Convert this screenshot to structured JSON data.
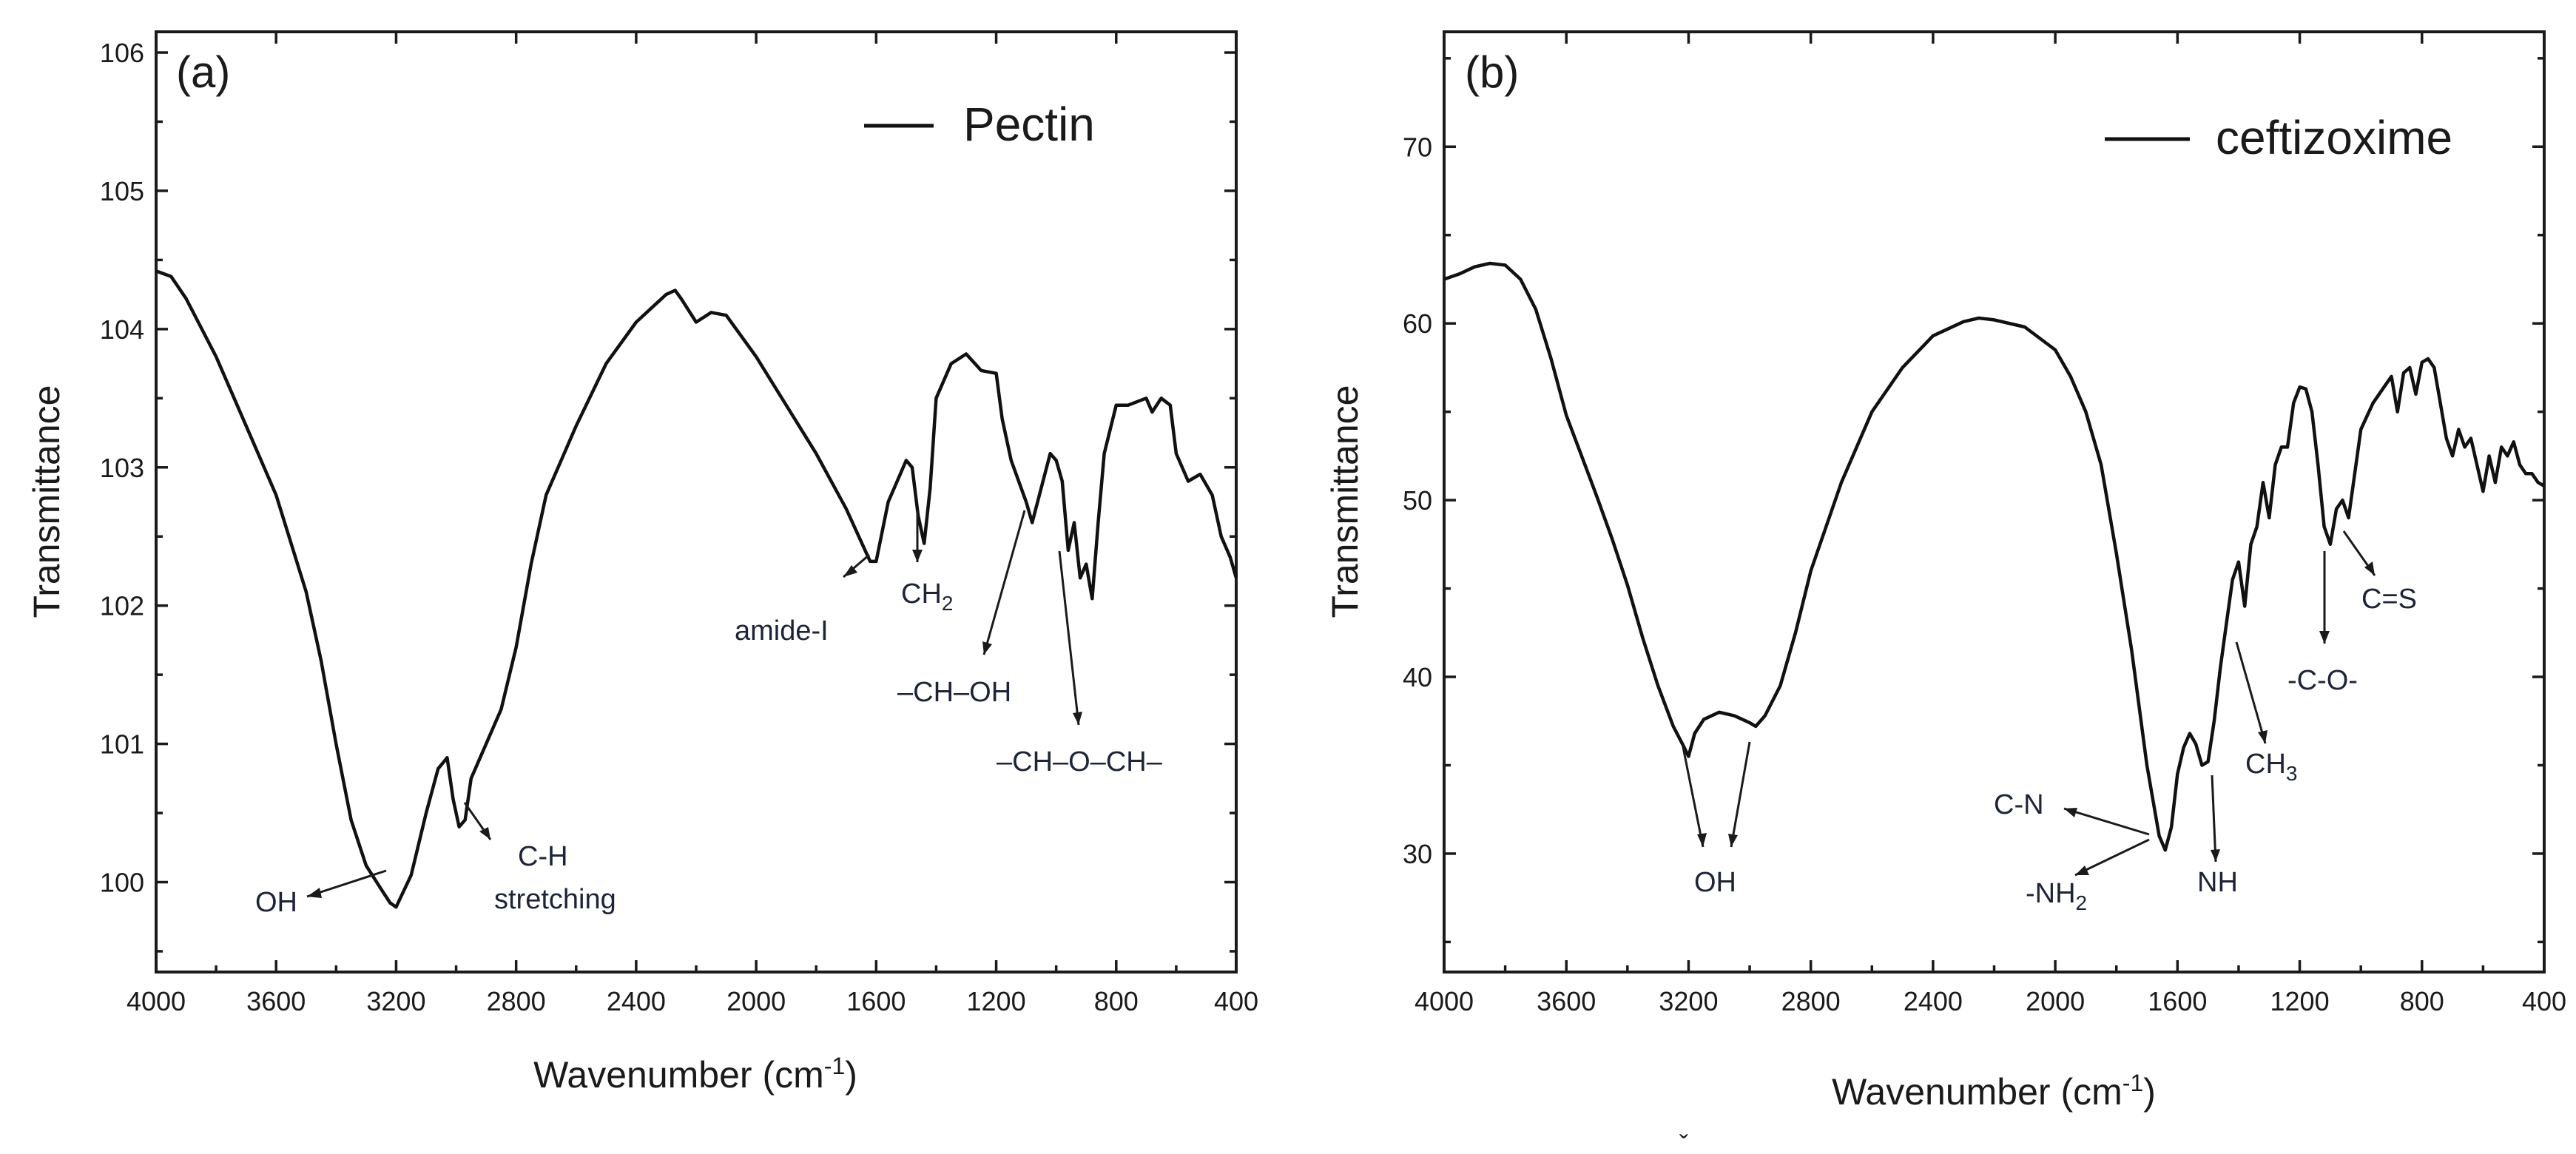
{
  "chart_data": [
    {
      "type": "line",
      "panel_label": "(a)",
      "xlabel": "Wavenumber (cm",
      "xlabel_sup": "-1",
      "xlabel_close": ")",
      "ylabel": "Transmittance",
      "xlim": [
        4000,
        400
      ],
      "ylim": [
        99.35,
        106.15
      ],
      "xticks": [
        4000,
        3600,
        3200,
        2800,
        2400,
        2000,
        1600,
        1200,
        800,
        400
      ],
      "xtick_labels": [
        "4000",
        "3600",
        "3200",
        "2800",
        "2400",
        "2000",
        "1600",
        "1200",
        "800",
        "400"
      ],
      "yticks": [
        100,
        101,
        102,
        103,
        104,
        105,
        106
      ],
      "ytick_labels": [
        "100",
        "101",
        "102",
        "103",
        "104",
        "105",
        "106"
      ],
      "legend": {
        "label": "Pectin",
        "position": "top-right"
      },
      "series": [
        {
          "name": "Pectin",
          "x": [
            4000,
            3950,
            3900,
            3800,
            3700,
            3600,
            3500,
            3450,
            3400,
            3350,
            3300,
            3250,
            3220,
            3200,
            3150,
            3100,
            3060,
            3030,
            3010,
            2990,
            2970,
            2950,
            2900,
            2850,
            2800,
            2750,
            2700,
            2600,
            2500,
            2400,
            2300,
            2270,
            2250,
            2200,
            2150,
            2100,
            2000,
            1900,
            1800,
            1700,
            1620,
            1600,
            1560,
            1520,
            1500,
            1480,
            1460,
            1440,
            1420,
            1400,
            1350,
            1300,
            1250,
            1200,
            1180,
            1150,
            1100,
            1080,
            1050,
            1020,
            1000,
            980,
            960,
            940,
            920,
            900,
            880,
            860,
            840,
            800,
            760,
            700,
            680,
            650,
            620,
            600,
            560,
            520,
            480,
            450,
            420,
            400
          ],
          "y": [
            104.42,
            104.38,
            104.22,
            103.8,
            103.3,
            102.8,
            102.1,
            101.6,
            101.0,
            100.45,
            100.12,
            99.95,
            99.85,
            99.82,
            100.05,
            100.5,
            100.82,
            100.9,
            100.6,
            100.4,
            100.45,
            100.75,
            101.0,
            101.25,
            101.7,
            102.3,
            102.8,
            103.3,
            103.75,
            104.05,
            104.25,
            104.28,
            104.22,
            104.05,
            104.12,
            104.1,
            103.8,
            103.45,
            103.1,
            102.7,
            102.32,
            102.32,
            102.75,
            102.95,
            103.05,
            103.0,
            102.65,
            102.45,
            102.85,
            103.5,
            103.75,
            103.82,
            103.7,
            103.68,
            103.35,
            103.05,
            102.75,
            102.6,
            102.85,
            103.1,
            103.05,
            102.9,
            102.4,
            102.6,
            102.2,
            102.3,
            102.05,
            102.6,
            103.1,
            103.45,
            103.45,
            103.5,
            103.4,
            103.5,
            103.45,
            103.1,
            102.9,
            102.95,
            102.8,
            102.5,
            102.35,
            102.2
          ]
        }
      ],
      "annotations": [
        {
          "text": "OH"
        },
        {
          "text": "C-H"
        },
        {
          "text": "stretching"
        },
        {
          "text": "amide-I"
        },
        {
          "text": "CH",
          "sub": "2"
        },
        {
          "text": "–CH–OH"
        },
        {
          "text": "–CH–O–CH–"
        }
      ]
    },
    {
      "type": "line",
      "panel_label": "(b)",
      "xlabel": "Wavenumber (cm",
      "xlabel_sup": "-1",
      "xlabel_close": ")",
      "ylabel": "Transmittance",
      "xlim": [
        4000,
        400
      ],
      "ylim": [
        23.3,
        76.5
      ],
      "xticks": [
        4000,
        3600,
        3200,
        2800,
        2400,
        2000,
        1600,
        1200,
        800,
        400
      ],
      "xtick_labels": [
        "4000",
        "3600",
        "3200",
        "2800",
        "2400",
        "2000",
        "1600",
        "1200",
        "800",
        "400"
      ],
      "yticks": [
        30,
        40,
        50,
        60,
        70
      ],
      "ytick_labels": [
        "30",
        "40",
        "50",
        "60",
        "70"
      ],
      "legend": {
        "label": "ceftizoxime",
        "position": "top-right"
      },
      "series": [
        {
          "name": "ceftizoxime",
          "x": [
            4000,
            3950,
            3900,
            3850,
            3800,
            3750,
            3700,
            3650,
            3600,
            3550,
            3500,
            3450,
            3400,
            3350,
            3300,
            3250,
            3220,
            3200,
            3180,
            3150,
            3100,
            3050,
            3000,
            2980,
            2950,
            2900,
            2850,
            2800,
            2700,
            2600,
            2500,
            2400,
            2300,
            2250,
            2200,
            2100,
            2000,
            1950,
            1900,
            1850,
            1800,
            1750,
            1700,
            1660,
            1640,
            1620,
            1600,
            1580,
            1560,
            1540,
            1520,
            1500,
            1480,
            1460,
            1440,
            1420,
            1400,
            1380,
            1360,
            1340,
            1320,
            1300,
            1280,
            1260,
            1240,
            1220,
            1200,
            1180,
            1160,
            1140,
            1120,
            1100,
            1080,
            1060,
            1040,
            1020,
            1000,
            960,
            920,
            900,
            880,
            860,
            840,
            820,
            800,
            780,
            760,
            740,
            720,
            700,
            680,
            660,
            640,
            620,
            600,
            580,
            560,
            540,
            520,
            500,
            480,
            460,
            440,
            420,
            400
          ],
          "y": [
            62.5,
            62.8,
            63.2,
            63.4,
            63.3,
            62.5,
            60.8,
            58.0,
            54.8,
            52.5,
            50.2,
            47.8,
            45.2,
            42.2,
            39.5,
            37.2,
            36.2,
            35.5,
            36.8,
            37.6,
            38.0,
            37.8,
            37.4,
            37.2,
            37.8,
            39.5,
            42.5,
            46.0,
            51.0,
            55.0,
            57.5,
            59.3,
            60.1,
            60.3,
            60.2,
            59.8,
            58.5,
            57.0,
            55.0,
            52.0,
            47.0,
            41.5,
            35.0,
            31.0,
            30.2,
            31.5,
            34.5,
            36.0,
            36.8,
            36.2,
            35.0,
            35.2,
            37.5,
            40.5,
            43.0,
            45.5,
            46.5,
            44.0,
            47.5,
            48.5,
            51.0,
            49.0,
            52.0,
            53.0,
            53.0,
            55.5,
            56.4,
            56.3,
            55.0,
            52.0,
            48.5,
            47.5,
            49.5,
            50.0,
            49.0,
            51.5,
            54.0,
            55.5,
            56.5,
            57.0,
            55.0,
            57.2,
            57.5,
            56.0,
            57.8,
            58.0,
            57.5,
            55.5,
            53.5,
            52.5,
            54.0,
            53.0,
            53.5,
            52.0,
            50.5,
            52.5,
            51.0,
            53.0,
            52.5,
            53.3,
            52.0,
            51.5,
            51.5,
            51.0,
            50.8
          ]
        }
      ],
      "annotations": [
        {
          "text": "OH"
        },
        {
          "text": "C-N"
        },
        {
          "text": "-NH",
          "sub": "2"
        },
        {
          "text": "NH"
        },
        {
          "text": "CH",
          "sub": "3"
        },
        {
          "text": "-C-O-"
        },
        {
          "text": "C=S"
        }
      ]
    }
  ],
  "footer_mark": "ˇ"
}
